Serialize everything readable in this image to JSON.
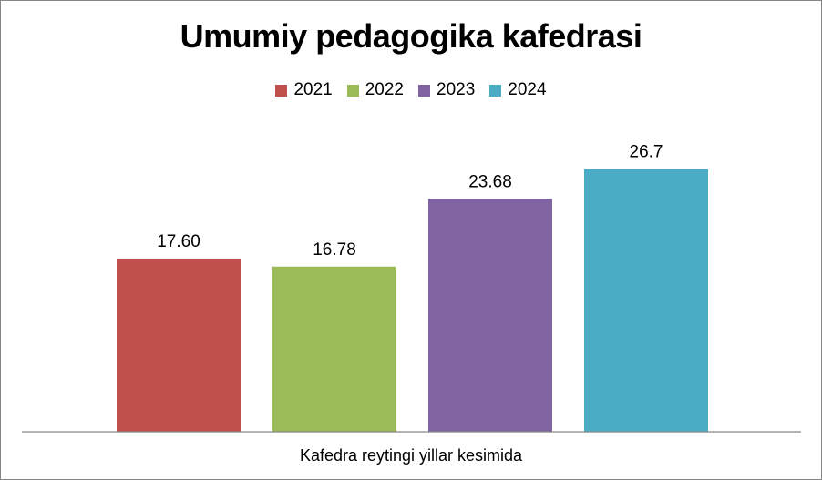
{
  "chart_data": {
    "type": "bar",
    "title": "Umumiy pedagogika kafedrasi",
    "xlabel": "Kafedra reytingi yillar kesimida",
    "ylabel": "",
    "legend_position": "top",
    "grid": false,
    "ylim": [
      0,
      30
    ],
    "series": [
      {
        "name": "2021",
        "value": 17.6,
        "label": "17.60",
        "color": "#C0504D"
      },
      {
        "name": "2022",
        "value": 16.78,
        "label": "16.78",
        "color": "#9BBB59"
      },
      {
        "name": "2023",
        "value": 23.68,
        "label": "23.68",
        "color": "#8064A2"
      },
      {
        "name": "2024",
        "value": 26.7,
        "label": "26.7",
        "color": "#4BACC6"
      }
    ]
  }
}
